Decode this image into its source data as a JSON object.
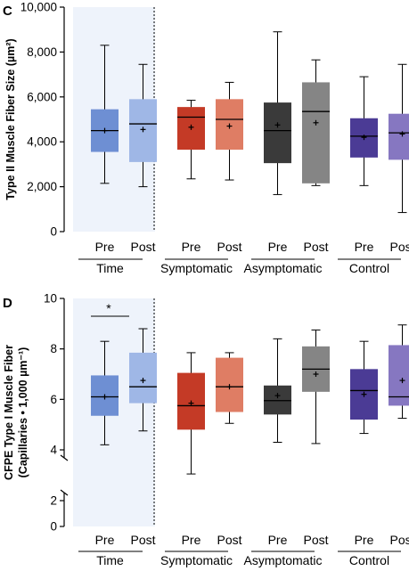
{
  "chart_data": [
    {
      "panel_label": "C",
      "type": "box",
      "ylabel": "Type II Muscle Fiber Size (µm²)",
      "ylim": [
        0,
        10000
      ],
      "yticks": [
        0,
        2000,
        4000,
        6000,
        8000,
        10000
      ],
      "ytick_labels": [
        "0",
        "2,000",
        "4,000",
        "6,000",
        "8,000",
        "10,000"
      ],
      "groups": [
        {
          "name": "Time",
          "categories": [
            "Pre",
            "Post"
          ]
        },
        {
          "name": "Symptomatic",
          "categories": [
            "Pre",
            "Post"
          ]
        },
        {
          "name": "Asymptomatic",
          "categories": [
            "Pre",
            "Post"
          ]
        },
        {
          "name": "Control",
          "categories": [
            "Pre",
            "Post"
          ]
        }
      ],
      "boxes": [
        {
          "group": "Time",
          "category": "Pre",
          "color": "#6e8fd3",
          "min": 2150,
          "q1": 3550,
          "median": 4500,
          "q3": 5450,
          "max": 8300,
          "mean": 4500
        },
        {
          "group": "Time",
          "category": "Post",
          "color": "#9fb7e6",
          "min": 2000,
          "q1": 3100,
          "median": 4800,
          "q3": 5900,
          "max": 7450,
          "mean": 4550
        },
        {
          "group": "Symptomatic",
          "category": "Pre",
          "color": "#c43a26",
          "min": 2350,
          "q1": 3650,
          "median": 5100,
          "q3": 5550,
          "max": 5850,
          "mean": 4650
        },
        {
          "group": "Symptomatic",
          "category": "Post",
          "color": "#df7d64",
          "min": 2300,
          "q1": 3650,
          "median": 5000,
          "q3": 5900,
          "max": 6650,
          "mean": 4700
        },
        {
          "group": "Asymptomatic",
          "category": "Pre",
          "color": "#3a3a3a",
          "min": 1650,
          "q1": 3050,
          "median": 4500,
          "q3": 5750,
          "max": 8900,
          "mean": 4750
        },
        {
          "group": "Asymptomatic",
          "category": "Post",
          "color": "#858585",
          "min": 2050,
          "q1": 2150,
          "median": 5350,
          "q3": 6650,
          "max": 7650,
          "mean": 4850
        },
        {
          "group": "Control",
          "category": "Pre",
          "color": "#4b3b95",
          "min": 2050,
          "q1": 3300,
          "median": 4250,
          "q3": 5050,
          "max": 6900,
          "mean": 4200
        },
        {
          "group": "Control",
          "category": "Post",
          "color": "#8677c1",
          "min": 850,
          "q1": 3200,
          "median": 4400,
          "q3": 5250,
          "max": 7450,
          "mean": 4350
        }
      ]
    },
    {
      "panel_label": "D",
      "type": "box",
      "ylabel_line1": "CFPE Type I Muscle Fiber",
      "ylabel_line2": "(Capillaries • 1,000 µm⁻¹)",
      "ylim": [
        0,
        10
      ],
      "axis_break": [
        2,
        4
      ],
      "yticks": [
        0,
        2,
        4,
        6,
        8,
        10
      ],
      "ytick_labels": [
        "0",
        "2",
        "4",
        "6",
        "8",
        "10"
      ],
      "annotation": "*",
      "groups": [
        {
          "name": "Time",
          "categories": [
            "Pre",
            "Post"
          ]
        },
        {
          "name": "Symptomatic",
          "categories": [
            "Pre",
            "Post"
          ]
        },
        {
          "name": "Asymptomatic",
          "categories": [
            "Pre",
            "Post"
          ]
        },
        {
          "name": "Control",
          "categories": [
            "Pre",
            "Post"
          ]
        }
      ],
      "boxes": [
        {
          "group": "Time",
          "category": "Pre",
          "color": "#6e8fd3",
          "min": 4.2,
          "q1": 5.35,
          "median": 6.1,
          "q3": 6.95,
          "max": 8.3,
          "mean": 6.1
        },
        {
          "group": "Time",
          "category": "Post",
          "color": "#9fb7e6",
          "min": 4.75,
          "q1": 5.85,
          "median": 6.5,
          "q3": 7.85,
          "max": 8.8,
          "mean": 6.75
        },
        {
          "group": "Symptomatic",
          "category": "Pre",
          "color": "#c43a26",
          "min": 3.05,
          "q1": 4.8,
          "median": 5.75,
          "q3": 7.05,
          "max": 7.85,
          "mean": 5.85
        },
        {
          "group": "Symptomatic",
          "category": "Post",
          "color": "#df7d64",
          "min": 5.05,
          "q1": 5.5,
          "median": 6.5,
          "q3": 7.65,
          "max": 7.85,
          "mean": 6.5
        },
        {
          "group": "Asymptomatic",
          "category": "Pre",
          "color": "#3a3a3a",
          "min": 4.3,
          "q1": 5.4,
          "median": 5.95,
          "q3": 6.55,
          "max": 8.4,
          "mean": 6.15
        },
        {
          "group": "Asymptomatic",
          "category": "Post",
          "color": "#858585",
          "min": 4.25,
          "q1": 6.3,
          "median": 7.2,
          "q3": 8.1,
          "max": 8.75,
          "mean": 7.0
        },
        {
          "group": "Control",
          "category": "Pre",
          "color": "#4b3b95",
          "min": 4.65,
          "q1": 5.2,
          "median": 6.35,
          "q3": 7.2,
          "max": 8.3,
          "mean": 6.2
        },
        {
          "group": "Control",
          "category": "Post",
          "color": "#8677c1",
          "min": 5.25,
          "q1": 5.75,
          "median": 6.1,
          "q3": 8.15,
          "max": 8.95,
          "mean": 6.75
        }
      ]
    }
  ]
}
